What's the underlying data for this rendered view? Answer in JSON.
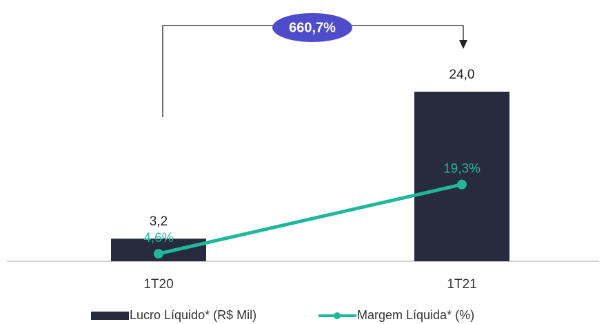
{
  "chart_data": {
    "type": "bar",
    "categories": [
      "1T20",
      "1T21"
    ],
    "series": [
      {
        "name": "Lucro Líquido* (R$ Mil)",
        "color": "#272b3d",
        "values": [
          3.2,
          24.0
        ],
        "value_labels": [
          "3,2",
          "24,0"
        ]
      },
      {
        "name": "Margem Líquida* (%)",
        "type": "line",
        "axis": "y2",
        "color": "#1fb89b",
        "values": [
          4.6,
          19.3
        ],
        "value_labels": [
          "4,6%",
          "19,3%"
        ]
      }
    ],
    "ylim": [
      0,
      30
    ],
    "y2lim": [
      3,
      48
    ],
    "annotations": [
      {
        "text": "660,7%",
        "color": "#4f4ccc"
      }
    ],
    "legend": "bottom"
  }
}
